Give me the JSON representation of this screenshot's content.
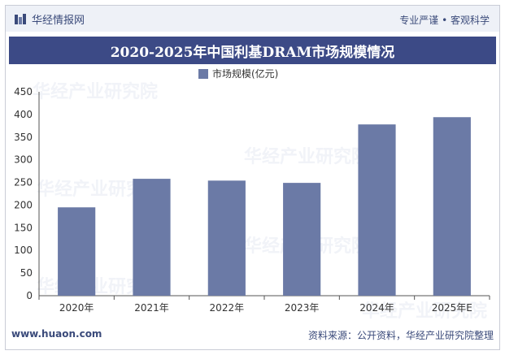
{
  "header": {
    "brand_name": "华经情报网",
    "slogan": "专业严谨 • 客观科学"
  },
  "footer": {
    "url": "www.huaon.com",
    "source": "资料来源：公开资料，华经产业研究院整理"
  },
  "watermark": "华经产业研究院",
  "colors": {
    "bar": "#6b7aa6",
    "title_bg": "#3c4a86",
    "accent": "#3a4a7a"
  },
  "chart_data": {
    "type": "bar",
    "title": "2020-2025年中国利基DRAM市场规模情况",
    "legend": [
      "市场规模(亿元)"
    ],
    "categories": [
      "2020年",
      "2021年",
      "2022年",
      "2023年",
      "2024年",
      "2025年E"
    ],
    "values": [
      195,
      258,
      254,
      249,
      378,
      394
    ],
    "ylim": [
      0,
      450
    ],
    "yticks": [
      0,
      50,
      100,
      150,
      200,
      250,
      300,
      350,
      400,
      450
    ],
    "xlabel": "",
    "ylabel": ""
  }
}
